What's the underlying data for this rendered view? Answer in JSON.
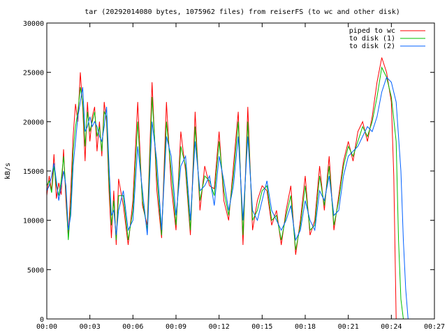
{
  "chart_data": {
    "type": "line",
    "title": "tar (20292014080 bytes, 1075962 files) from reiserFS (to wc and other disk)",
    "xlabel": "",
    "ylabel": "kB/s",
    "xlim": [
      0,
      1620
    ],
    "ylim": [
      0,
      30000
    ],
    "xticks": [
      0,
      180,
      360,
      540,
      720,
      900,
      1080,
      1260,
      1440,
      1620
    ],
    "xtick_labels": [
      "00:00",
      "00:03",
      "00:06",
      "00:09",
      "00:12",
      "00:15",
      "00:18",
      "00:21",
      "00:24",
      "00:27"
    ],
    "yticks": [
      0,
      5000,
      10000,
      15000,
      20000,
      25000,
      30000
    ],
    "ytick_labels": [
      "0",
      "5000",
      "10000",
      "15000",
      "20000",
      "25000",
      "30000"
    ],
    "grid": false,
    "legend_position": "top-right",
    "series": [
      {
        "name": "piped to wc",
        "color": "#ff0000",
        "x": [
          0,
          10,
          20,
          30,
          40,
          50,
          60,
          70,
          80,
          90,
          100,
          110,
          120,
          130,
          140,
          150,
          160,
          170,
          180,
          190,
          200,
          210,
          220,
          230,
          240,
          250,
          260,
          270,
          280,
          290,
          300,
          320,
          340,
          360,
          380,
          400,
          420,
          440,
          460,
          480,
          500,
          520,
          540,
          560,
          580,
          600,
          620,
          640,
          660,
          680,
          700,
          720,
          740,
          760,
          780,
          800,
          820,
          840,
          860,
          880,
          900,
          920,
          940,
          960,
          980,
          1000,
          1020,
          1040,
          1060,
          1080,
          1100,
          1120,
          1140,
          1160,
          1180,
          1200,
          1220,
          1240,
          1260,
          1280,
          1300,
          1320,
          1340,
          1360,
          1380,
          1400,
          1420,
          1440,
          1450,
          1460,
          1470,
          1480,
          1490,
          1500
        ],
        "values": [
          12500,
          14500,
          13000,
          16700,
          12200,
          13800,
          12600,
          17200,
          12000,
          8300,
          13000,
          18500,
          21800,
          20000,
          25000,
          21500,
          16000,
          22000,
          18000,
          20500,
          21500,
          17000,
          20000,
          16500,
          22000,
          20000,
          13000,
          8200,
          13000,
          7500,
          14200,
          11500,
          7500,
          12000,
          22000,
          11500,
          9500,
          24000,
          13000,
          8200,
          22000,
          13500,
          9000,
          19000,
          15000,
          8500,
          21000,
          11000,
          15500,
          13500,
          13200,
          19000,
          12000,
          10000,
          15500,
          21000,
          7500,
          21500,
          9000,
          12000,
          13500,
          13000,
          9500,
          11000,
          7500,
          11000,
          13500,
          6500,
          10000,
          14500,
          8500,
          10000,
          15500,
          11000,
          16500,
          9000,
          12500,
          16000,
          18000,
          16000,
          19000,
          20000,
          18000,
          20500,
          24000,
          26500,
          25000,
          22000,
          14500,
          0,
          0,
          0,
          0,
          0
        ]
      },
      {
        "name": "to disk (1)",
        "color": "#00c000",
        "x": [
          0,
          10,
          20,
          30,
          40,
          50,
          60,
          70,
          80,
          90,
          100,
          110,
          120,
          130,
          140,
          150,
          160,
          170,
          180,
          190,
          200,
          210,
          220,
          230,
          240,
          250,
          260,
          270,
          280,
          290,
          300,
          320,
          340,
          360,
          380,
          400,
          420,
          440,
          460,
          480,
          500,
          520,
          540,
          560,
          580,
          600,
          620,
          640,
          660,
          680,
          700,
          720,
          740,
          760,
          780,
          800,
          820,
          840,
          860,
          880,
          900,
          920,
          940,
          960,
          980,
          1000,
          1020,
          1040,
          1060,
          1080,
          1100,
          1120,
          1140,
          1160,
          1180,
          1200,
          1220,
          1240,
          1260,
          1280,
          1300,
          1320,
          1340,
          1360,
          1380,
          1400,
          1420,
          1440,
          1460,
          1470,
          1480,
          1490,
          1500,
          1510,
          1520
        ],
        "values": [
          13500,
          14000,
          12800,
          15500,
          13500,
          12500,
          14000,
          16500,
          13000,
          8000,
          11500,
          17000,
          19500,
          21000,
          23500,
          22000,
          17500,
          21000,
          19000,
          20000,
          21000,
          18500,
          19500,
          17000,
          21000,
          20500,
          14000,
          9500,
          12000,
          8000,
          12500,
          12500,
          8000,
          11000,
          20000,
          12000,
          9000,
          22500,
          14500,
          8500,
          20000,
          15000,
          9500,
          17500,
          15500,
          9000,
          19500,
          12000,
          14500,
          14000,
          12500,
          18000,
          13000,
          10500,
          14500,
          20000,
          8500,
          20000,
          10000,
          11000,
          13000,
          13500,
          10000,
          10500,
          8000,
          10500,
          12500,
          7000,
          9500,
          13500,
          9000,
          9500,
          14500,
          11500,
          15500,
          9500,
          12000,
          15500,
          17500,
          16500,
          18000,
          19500,
          18500,
          20000,
          22500,
          25500,
          24500,
          22500,
          18000,
          8000,
          2000,
          0,
          0,
          0,
          0
        ]
      },
      {
        "name": "to disk (2)",
        "color": "#0060ff",
        "x": [
          0,
          10,
          20,
          30,
          40,
          50,
          60,
          70,
          80,
          90,
          100,
          110,
          120,
          130,
          140,
          150,
          160,
          170,
          180,
          190,
          200,
          210,
          220,
          230,
          240,
          250,
          260,
          270,
          280,
          290,
          300,
          320,
          340,
          360,
          380,
          400,
          420,
          440,
          460,
          480,
          500,
          520,
          540,
          560,
          580,
          600,
          620,
          640,
          660,
          680,
          700,
          720,
          740,
          760,
          780,
          800,
          820,
          840,
          860,
          880,
          900,
          920,
          940,
          960,
          980,
          1000,
          1020,
          1040,
          1060,
          1080,
          1100,
          1120,
          1140,
          1160,
          1180,
          1200,
          1220,
          1240,
          1260,
          1280,
          1300,
          1320,
          1340,
          1360,
          1380,
          1400,
          1420,
          1440,
          1460,
          1480,
          1490,
          1500,
          1510,
          1520,
          1530
        ],
        "values": [
          13000,
          13500,
          14500,
          15800,
          14000,
          12000,
          13500,
          15000,
          13500,
          9000,
          10500,
          15500,
          18000,
          20500,
          22000,
          23500,
          19000,
          19500,
          20500,
          19500,
          20000,
          19500,
          18500,
          18000,
          19500,
          21500,
          15500,
          10500,
          11000,
          8500,
          11000,
          13000,
          9000,
          10000,
          17500,
          13000,
          8500,
          20000,
          16000,
          9000,
          18500,
          16500,
          10500,
          15500,
          16500,
          10000,
          18000,
          13000,
          13500,
          14500,
          11500,
          16500,
          14000,
          11000,
          13500,
          18500,
          10000,
          18500,
          11000,
          10000,
          12000,
          14000,
          11000,
          10000,
          9000,
          10000,
          11500,
          8000,
          9000,
          12000,
          10000,
          9000,
          13000,
          12000,
          14500,
          10500,
          11000,
          14500,
          16500,
          17000,
          17500,
          18500,
          19500,
          19000,
          20500,
          23000,
          24500,
          24000,
          22000,
          15000,
          8000,
          3000,
          0,
          0,
          0
        ]
      }
    ]
  }
}
